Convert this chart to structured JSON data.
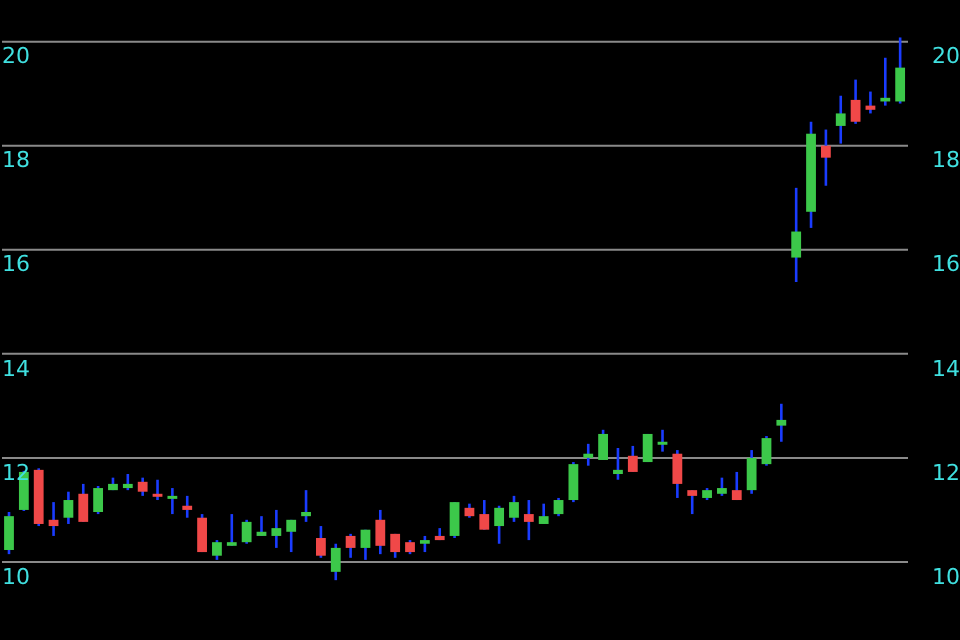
{
  "chart_data": {
    "type": "candlestick",
    "categories": [
      null,
      null,
      null,
      null,
      null,
      null,
      null,
      null,
      null,
      null,
      null,
      null,
      null,
      null,
      null,
      null,
      null,
      null,
      null,
      null,
      null,
      null,
      null,
      null,
      null,
      null,
      null,
      null,
      null,
      null,
      null,
      null,
      null,
      null,
      null,
      null,
      null,
      null,
      null,
      null,
      null,
      null,
      null,
      null,
      null,
      null,
      null,
      null,
      null,
      null,
      null,
      null,
      null,
      null,
      null,
      null,
      null,
      null,
      null,
      null,
      null
    ],
    "ohlc": [
      [
        10.23,
        10.96,
        10.15,
        10.88
      ],
      [
        11.0,
        11.75,
        10.98,
        11.73
      ],
      [
        11.77,
        11.8,
        10.69,
        10.73
      ],
      [
        10.81,
        11.15,
        10.5,
        10.69
      ],
      [
        10.85,
        11.35,
        10.73,
        11.19
      ],
      [
        11.31,
        11.5,
        10.77,
        10.77
      ],
      [
        10.96,
        11.46,
        10.92,
        11.42
      ],
      [
        11.38,
        11.62,
        11.38,
        11.5
      ],
      [
        11.42,
        11.69,
        11.38,
        11.5
      ],
      [
        11.54,
        11.62,
        11.27,
        11.35
      ],
      [
        11.31,
        11.58,
        11.19,
        11.27
      ],
      [
        11.23,
        11.42,
        10.92,
        11.27
      ],
      [
        11.08,
        11.27,
        10.85,
        11.0
      ],
      [
        10.85,
        10.92,
        10.19,
        10.19
      ],
      [
        10.12,
        10.42,
        10.04,
        10.38
      ],
      [
        10.31,
        10.92,
        10.31,
        10.38
      ],
      [
        10.38,
        10.81,
        10.35,
        10.77
      ],
      [
        10.5,
        10.88,
        10.5,
        10.58
      ],
      [
        10.5,
        11.0,
        10.27,
        10.65
      ],
      [
        10.58,
        10.81,
        10.19,
        10.81
      ],
      [
        10.88,
        11.38,
        10.77,
        10.96
      ],
      [
        10.46,
        10.69,
        10.08,
        10.12
      ],
      [
        9.81,
        10.35,
        9.65,
        10.27
      ],
      [
        10.5,
        10.54,
        10.08,
        10.27
      ],
      [
        10.27,
        10.62,
        10.04,
        10.62
      ],
      [
        10.81,
        11.0,
        10.15,
        10.31
      ],
      [
        10.54,
        10.54,
        10.08,
        10.19
      ],
      [
        10.38,
        10.42,
        10.15,
        10.19
      ],
      [
        10.35,
        10.5,
        10.19,
        10.42
      ],
      [
        10.5,
        10.65,
        10.42,
        10.42
      ],
      [
        10.5,
        11.15,
        10.46,
        11.15
      ],
      [
        11.04,
        11.12,
        10.85,
        10.88
      ],
      [
        10.92,
        11.19,
        10.62,
        10.62
      ],
      [
        10.69,
        11.08,
        10.35,
        11.04
      ],
      [
        10.85,
        11.27,
        10.77,
        11.15
      ],
      [
        10.92,
        11.19,
        10.42,
        10.77
      ],
      [
        10.73,
        11.12,
        10.73,
        10.88
      ],
      [
        10.92,
        11.23,
        10.88,
        11.19
      ],
      [
        11.19,
        11.92,
        11.15,
        11.88
      ],
      [
        12.0,
        12.27,
        11.85,
        12.08
      ],
      [
        11.96,
        12.54,
        11.96,
        12.46
      ],
      [
        11.69,
        12.19,
        11.58,
        11.77
      ],
      [
        12.04,
        12.23,
        11.73,
        11.73
      ],
      [
        11.92,
        12.46,
        11.92,
        12.46
      ],
      [
        12.27,
        12.54,
        12.12,
        12.31
      ],
      [
        12.08,
        12.15,
        11.23,
        11.5
      ],
      [
        11.38,
        11.38,
        10.92,
        11.27
      ],
      [
        11.23,
        11.42,
        11.19,
        11.38
      ],
      [
        11.31,
        11.62,
        11.27,
        11.42
      ],
      [
        11.38,
        11.73,
        11.19,
        11.19
      ],
      [
        11.38,
        12.15,
        11.31,
        12.0
      ],
      [
        11.88,
        12.42,
        11.85,
        12.38
      ],
      [
        12.62,
        13.04,
        12.31,
        12.73
      ],
      [
        15.85,
        17.19,
        15.38,
        16.35
      ],
      [
        16.73,
        18.46,
        16.42,
        18.23
      ],
      [
        18.0,
        18.31,
        17.23,
        17.77
      ],
      [
        18.38,
        18.96,
        18.04,
        18.62
      ],
      [
        18.88,
        19.27,
        18.42,
        18.46
      ],
      [
        18.77,
        19.04,
        18.62,
        18.69
      ],
      [
        18.85,
        19.69,
        18.77,
        18.92
      ],
      [
        18.85,
        20.08,
        18.81,
        19.5
      ]
    ],
    "colors": [
      "#3cc84a",
      "#3cc84a",
      "#f04848",
      "#f04848",
      "#3cc84a",
      "#f04848",
      "#3cc84a",
      "#3cc84a",
      "#3cc84a",
      "#f04848",
      "#f04848",
      "#3cc84a",
      "#f04848",
      "#f04848",
      "#3cc84a",
      "#3cc84a",
      "#3cc84a",
      "#3cc84a",
      "#3cc84a",
      "#3cc84a",
      "#3cc84a",
      "#f04848",
      "#3cc84a",
      "#f04848",
      "#3cc84a",
      "#f04848",
      "#f04848",
      "#f04848",
      "#3cc84a",
      "#f04848",
      "#3cc84a",
      "#f04848",
      "#f04848",
      "#3cc84a",
      "#3cc84a",
      "#f04848",
      "#3cc84a",
      "#3cc84a",
      "#3cc84a",
      "#3cc84a",
      "#3cc84a",
      "#3cc84a",
      "#f04848",
      "#3cc84a",
      "#3cc84a",
      "#f04848",
      "#f04848",
      "#3cc84a",
      "#3cc84a",
      "#f04848",
      "#3cc84a",
      "#3cc84a",
      "#3cc84a",
      "#3cc84a",
      "#3cc84a",
      "#f04848",
      "#3cc84a",
      "#f04848",
      "#f04848",
      "#3cc84a",
      "#3cc84a"
    ],
    "ylim": [
      8.5,
      20.8
    ],
    "yticks": [
      10,
      12,
      14,
      16,
      18,
      20
    ],
    "y2lim": [
      8.5,
      20.8
    ],
    "y2ticks": [
      10,
      12,
      14,
      16,
      18,
      20
    ],
    "grid": "y",
    "tick_labels": "y"
  }
}
